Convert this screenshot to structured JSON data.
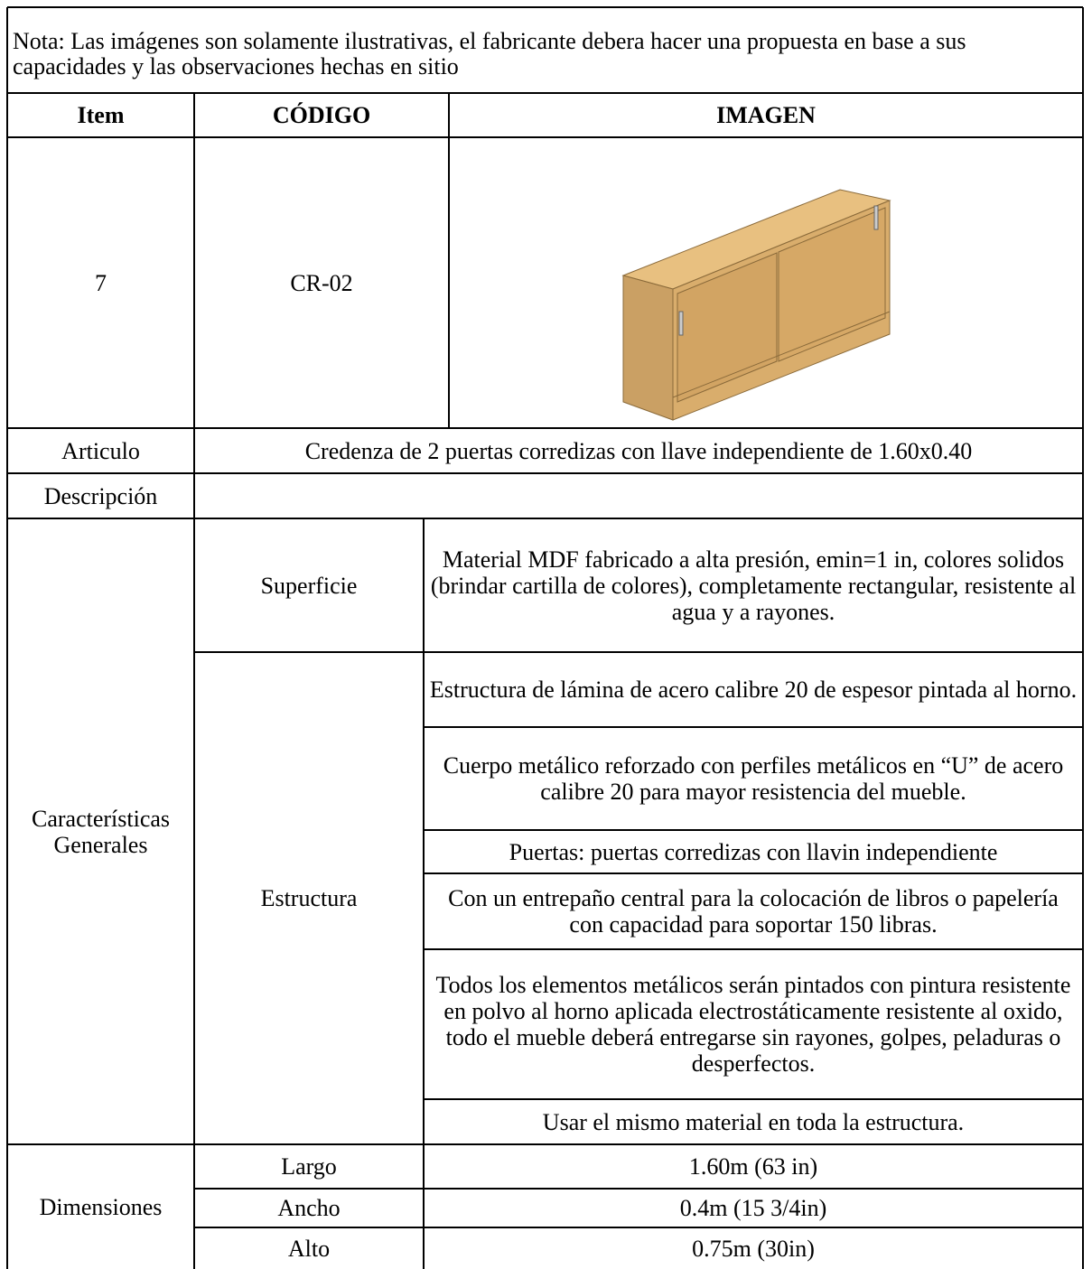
{
  "note": "Nota: Las imágenes son solamente ilustrativas, el fabricante debera hacer una propuesta en base a sus capacidades y las observaciones hechas en sitio",
  "table": {
    "header": {
      "item": "Item",
      "code": "CÓDIGO",
      "image": "IMAGEN"
    },
    "product": {
      "item": "7",
      "code": "CR-02"
    },
    "articulo": {
      "label": "Articulo",
      "value": "Credenza de 2 puertas corredizas con llave independiente de 1.60x0.40"
    },
    "descripcion": {
      "label": "Descripción"
    },
    "caracteristicas": {
      "label": "Características Generales",
      "superficie": {
        "label": "Superficie",
        "text": "Material MDF fabricado a alta presión, emin=1 in, colores solidos (brindar cartilla de colores), completamente rectangular, resistente al agua y a rayones."
      },
      "estructura": {
        "label": "Estructura",
        "items": [
          "Estructura de lámina de acero calibre 20 de espesor pintada al horno.",
          "Cuerpo metálico reforzado con perfiles metálicos en “U” de acero calibre 20 para mayor resistencia del mueble.",
          "Puertas: puertas corredizas con llavin independiente",
          "Con un entrepaño central para la colocación de libros o papelería con capacidad para soportar 150 libras.",
          "Todos los elementos metálicos serán pintados con pintura resistente en polvo al horno aplicada electrostáticamente resistente al oxido, todo el mueble deberá entregarse sin rayones, golpes, peladuras o desperfectos.",
          "Usar el mismo material en toda la estructura."
        ]
      }
    },
    "dimensiones": {
      "label": "Dimensiones",
      "rows": [
        {
          "label": "Largo",
          "value": "1.60m (63 in)"
        },
        {
          "label": "Ancho",
          "value": "0.4m (15 3/4in)"
        },
        {
          "label": "Alto",
          "value": "0.75m (30in)"
        }
      ]
    }
  }
}
